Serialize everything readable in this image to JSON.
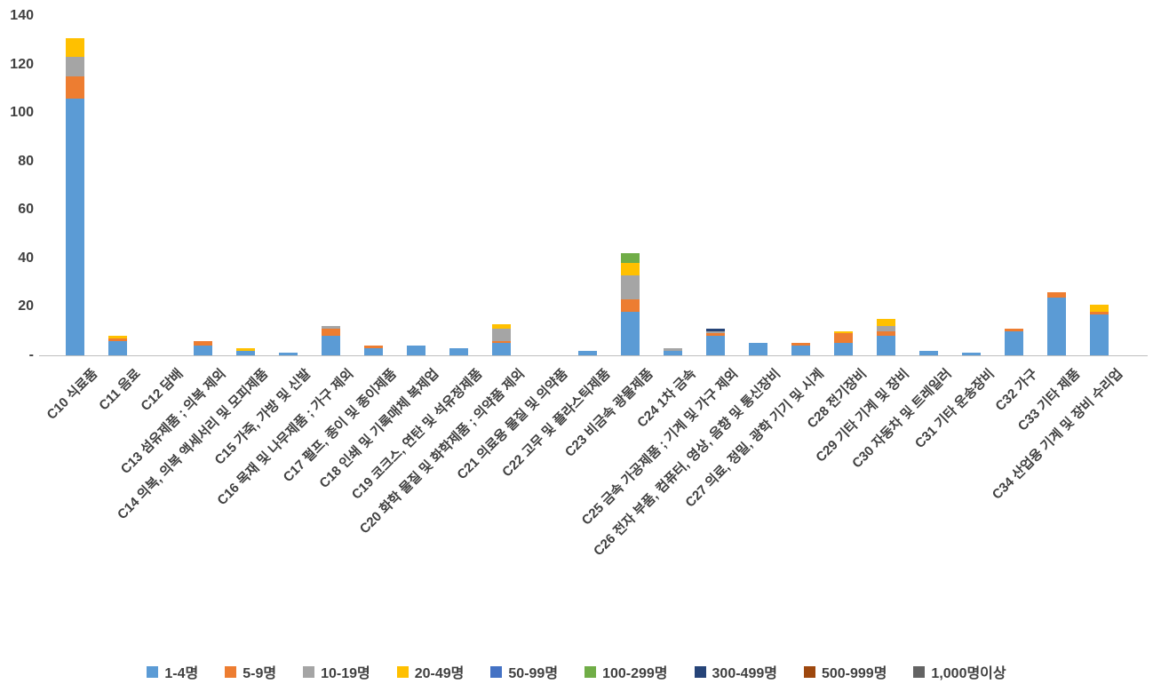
{
  "chart_data": {
    "type": "bar",
    "stacked": true,
    "title": "",
    "xlabel": "",
    "ylabel": "",
    "ylim": [
      0,
      140
    ],
    "grid": false,
    "legend_position": "bottom",
    "axis_color": "#bfbfbf",
    "text_color": "#404040",
    "yticks": [
      {
        "value": 0,
        "label": "-"
      },
      {
        "value": 20,
        "label": "20"
      },
      {
        "value": 40,
        "label": "40"
      },
      {
        "value": 60,
        "label": "60"
      },
      {
        "value": 80,
        "label": "80"
      },
      {
        "value": 100,
        "label": "100"
      },
      {
        "value": 120,
        "label": "120"
      },
      {
        "value": 140,
        "label": "140"
      }
    ],
    "categories": [
      "C10 식료품",
      "C11 음료",
      "C12 담배",
      "C13 섬유제품 ; 의복 제외",
      "C14 의복, 의복 액세서리 및 모피제품",
      "C15 가죽, 가방 및 신발",
      "C16 목재 및 나무제품 ; 가구 제외",
      "C17 펄프, 종이 및 종이제품",
      "C18 인쇄 및 기록매체 복제업",
      "C19 코크스, 연탄 및 석유정제품",
      "C20 화학 물질 및 화학제품 ; 의약품 제외",
      "C21 의료용 물질 및 의약품",
      "C22 고무 및 플라스틱제품",
      "C23 비금속 광물제품",
      "C24 1차 금속",
      "C25 금속 가공제품 ; 기계 및 가구 제외",
      "C26 전자 부품, 컴퓨터, 영상, 음향 및 통신장비",
      "C27 의료, 정밀, 광학 기기 및 시계",
      "C28 전기장비",
      "C29 기타 기계 및 장비",
      "C30 자동차 및 트레일러",
      "C31 기타 운송장비",
      "C32 가구",
      "C33 기타 제품",
      "C34 산업용 기계 및 장비 수리업"
    ],
    "series": [
      {
        "name": "1-4명",
        "color": "#5B9BD5",
        "values": [
          106,
          6,
          0,
          4,
          2,
          1,
          8,
          3,
          4,
          3,
          5,
          0,
          2,
          18,
          2,
          8,
          5,
          4,
          5,
          8,
          2,
          1,
          10,
          24,
          17
        ]
      },
      {
        "name": "5-9명",
        "color": "#ED7D31",
        "values": [
          9,
          1,
          0,
          2,
          0,
          0,
          3,
          1,
          0,
          0,
          1,
          0,
          0,
          5,
          0,
          1,
          0,
          1,
          4,
          2,
          0,
          0,
          1,
          2,
          1
        ]
      },
      {
        "name": "10-19명",
        "color": "#A5A5A5",
        "values": [
          8,
          0,
          0,
          0,
          0,
          0,
          1,
          0,
          0,
          0,
          5,
          0,
          0,
          10,
          1,
          1,
          0,
          0,
          0,
          2,
          0,
          0,
          0,
          0,
          0
        ]
      },
      {
        "name": "20-49명",
        "color": "#FFC000",
        "values": [
          8,
          1,
          0,
          0,
          1,
          0,
          0,
          0,
          0,
          0,
          2,
          0,
          0,
          5,
          0,
          0,
          0,
          0,
          1,
          3,
          0,
          0,
          0,
          0,
          3
        ]
      },
      {
        "name": "50-99명",
        "color": "#4472C4",
        "values": [
          0,
          0,
          0,
          0,
          0,
          0,
          0,
          0,
          0,
          0,
          0,
          0,
          0,
          0,
          0,
          0,
          0,
          0,
          0,
          0,
          0,
          0,
          0,
          0,
          0
        ]
      },
      {
        "name": "100-299명",
        "color": "#70AD47",
        "values": [
          0,
          0,
          0,
          0,
          0,
          0,
          0,
          0,
          0,
          0,
          0,
          0,
          0,
          4,
          0,
          0,
          0,
          0,
          0,
          0,
          0,
          0,
          0,
          0,
          0
        ]
      },
      {
        "name": "300-499명",
        "color": "#264478",
        "values": [
          0,
          0,
          0,
          0,
          0,
          0,
          0,
          0,
          0,
          0,
          0,
          0,
          0,
          0,
          0,
          1,
          0,
          0,
          0,
          0,
          0,
          0,
          0,
          0,
          0
        ]
      },
      {
        "name": "500-999명",
        "color": "#9E480E",
        "values": [
          0,
          0,
          0,
          0,
          0,
          0,
          0,
          0,
          0,
          0,
          0,
          0,
          0,
          0,
          0,
          0,
          0,
          0,
          0,
          0,
          0,
          0,
          0,
          0,
          0
        ]
      },
      {
        "name": "1,000명이상",
        "color": "#636363",
        "values": [
          0,
          0,
          0,
          0,
          0,
          0,
          0,
          0,
          0,
          0,
          0,
          0,
          0,
          0,
          0,
          0,
          0,
          0,
          0,
          0,
          0,
          0,
          0,
          0,
          0
        ]
      }
    ]
  }
}
